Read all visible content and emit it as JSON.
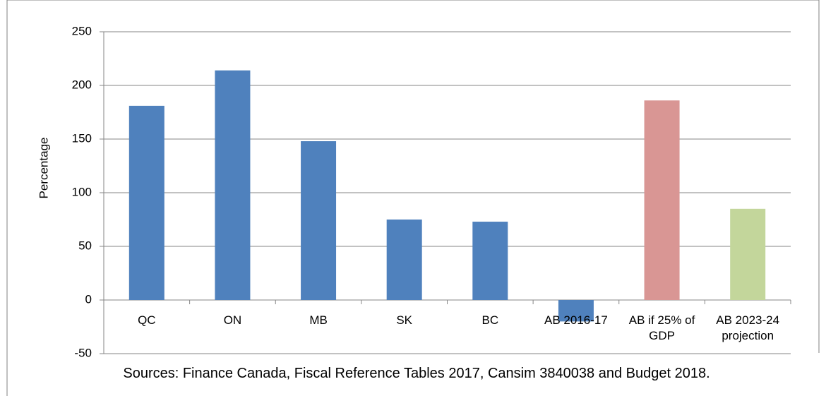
{
  "chart_data": {
    "type": "bar",
    "y_label": "Percentage",
    "source": "Sources: Finance Canada, Fiscal Reference Tables 2017, Cansim 3840038 and Budget 2018.",
    "categories": [
      "QC",
      "ON",
      "MB",
      "SK",
      "BC",
      "AB 2016-17",
      "AB if 25% of GDP",
      "AB 2023-24 projection"
    ],
    "values": [
      181,
      214,
      148,
      75,
      73,
      -20,
      186,
      85
    ],
    "colors": [
      "#4f81bd",
      "#4f81bd",
      "#4f81bd",
      "#4f81bd",
      "#4f81bd",
      "#4f81bd",
      "#d99694",
      "#c3d69b"
    ],
    "ylim": [
      -50,
      250
    ],
    "yticks": [
      -50,
      0,
      50,
      100,
      150,
      200,
      250
    ],
    "grid": true
  }
}
